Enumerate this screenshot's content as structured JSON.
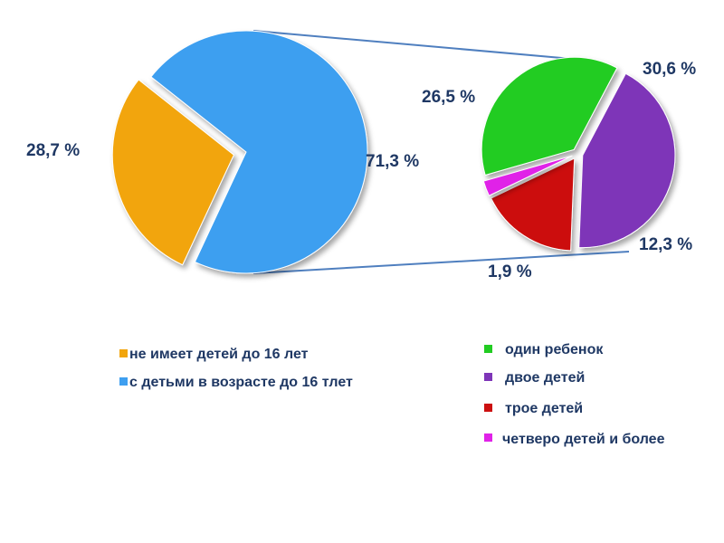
{
  "chart_data": [
    {
      "type": "pie",
      "slices": [
        {
          "label": "не имеет детей до 16 лет",
          "value": 28.7,
          "value_label": "28,7 %",
          "color": "#f2a50c"
        },
        {
          "label": "с детьми в возрасте до 16 тлет",
          "value": 71.3,
          "value_label": "71,3 %",
          "color": "#3e9ff0"
        }
      ]
    },
    {
      "type": "pie",
      "slices": [
        {
          "label": "один ребенок",
          "value": 26.5,
          "value_label": "26,5 %",
          "color": "#22cc22"
        },
        {
          "label": "двое детей",
          "value": 30.6,
          "value_label": "30,6 %",
          "color": "#7e35b8"
        },
        {
          "label": "трое детей",
          "value": 12.3,
          "value_label": "12,3 %",
          "color": "#cc1010"
        },
        {
          "label": "четверо детей и более",
          "value": 1.9,
          "value_label": "1,9 %",
          "color": "#e022e8"
        }
      ]
    }
  ],
  "colors": {
    "text": "#1f3864",
    "connector": "#4f7fbf"
  }
}
